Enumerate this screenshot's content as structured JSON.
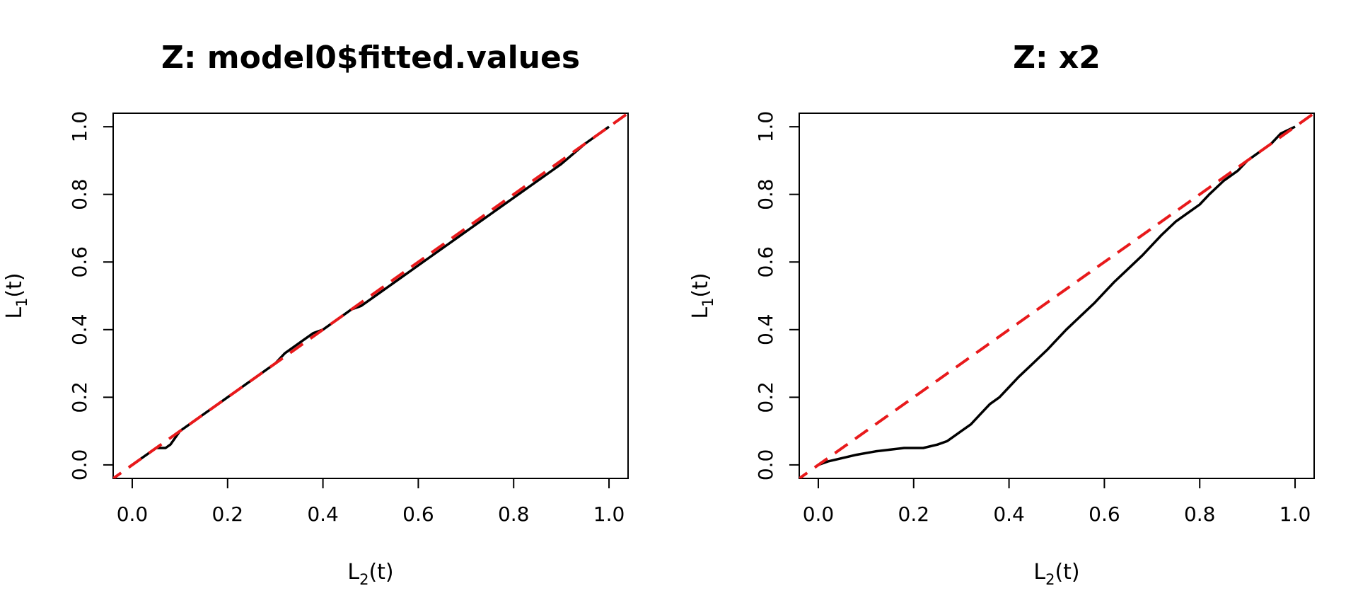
{
  "colors": {
    "curve": "#000000",
    "diagonal": "#e8191b",
    "background": "#ffffff"
  },
  "chart_data": [
    {
      "type": "line",
      "title": "Z: model0$fitted.values",
      "xlabel": {
        "main": "L",
        "sub": "2",
        "tail": "(t)"
      },
      "ylabel": {
        "main": "L",
        "sub": "1",
        "tail": "(t)"
      },
      "xlim": [
        0,
        1
      ],
      "ylim": [
        0,
        1
      ],
      "xticks": [
        "0.0",
        "0.2",
        "0.4",
        "0.6",
        "0.8",
        "1.0"
      ],
      "yticks": [
        "0.0",
        "0.2",
        "0.4",
        "0.6",
        "0.8",
        "1.0"
      ],
      "grid": false,
      "series": [
        {
          "style": "solid-black",
          "x": [
            0,
            0.02,
            0.03,
            0.04,
            0.05,
            0.06,
            0.07,
            0.08,
            0.09,
            0.1,
            0.12,
            0.14,
            0.16,
            0.18,
            0.2,
            0.22,
            0.24,
            0.26,
            0.28,
            0.3,
            0.32,
            0.34,
            0.36,
            0.38,
            0.4,
            0.42,
            0.44,
            0.46,
            0.48,
            0.5,
            0.55,
            0.6,
            0.65,
            0.7,
            0.75,
            0.8,
            0.85,
            0.9,
            0.95,
            1.0
          ],
          "y": [
            0,
            0.02,
            0.03,
            0.04,
            0.05,
            0.05,
            0.05,
            0.06,
            0.08,
            0.1,
            0.12,
            0.14,
            0.16,
            0.18,
            0.2,
            0.22,
            0.24,
            0.26,
            0.28,
            0.3,
            0.33,
            0.35,
            0.37,
            0.39,
            0.4,
            0.42,
            0.44,
            0.46,
            0.47,
            0.49,
            0.54,
            0.59,
            0.64,
            0.69,
            0.74,
            0.79,
            0.84,
            0.89,
            0.95,
            1.0
          ]
        },
        {
          "style": "dashed-red",
          "x": [
            -0.05,
            1.05
          ],
          "y": [
            -0.05,
            1.05
          ]
        }
      ]
    },
    {
      "type": "line",
      "title": "Z: x2",
      "xlabel": {
        "main": "L",
        "sub": "2",
        "tail": "(t)"
      },
      "ylabel": {
        "main": "L",
        "sub": "1",
        "tail": "(t)"
      },
      "xlim": [
        0,
        1
      ],
      "ylim": [
        0,
        1
      ],
      "xticks": [
        "0.0",
        "0.2",
        "0.4",
        "0.6",
        "0.8",
        "1.0"
      ],
      "yticks": [
        "0.0",
        "0.2",
        "0.4",
        "0.6",
        "0.8",
        "1.0"
      ],
      "grid": false,
      "series": [
        {
          "style": "solid-black",
          "x": [
            0,
            0.02,
            0.05,
            0.08,
            0.1,
            0.12,
            0.15,
            0.18,
            0.2,
            0.22,
            0.25,
            0.27,
            0.28,
            0.3,
            0.32,
            0.34,
            0.36,
            0.38,
            0.4,
            0.42,
            0.45,
            0.48,
            0.5,
            0.52,
            0.55,
            0.58,
            0.6,
            0.62,
            0.65,
            0.68,
            0.7,
            0.72,
            0.75,
            0.78,
            0.8,
            0.82,
            0.85,
            0.88,
            0.9,
            0.92,
            0.95,
            0.97,
            1.0
          ],
          "y": [
            0,
            0.01,
            0.02,
            0.03,
            0.035,
            0.04,
            0.045,
            0.05,
            0.05,
            0.05,
            0.06,
            0.07,
            0.08,
            0.1,
            0.12,
            0.15,
            0.18,
            0.2,
            0.23,
            0.26,
            0.3,
            0.34,
            0.37,
            0.4,
            0.44,
            0.48,
            0.51,
            0.54,
            0.58,
            0.62,
            0.65,
            0.68,
            0.72,
            0.75,
            0.77,
            0.8,
            0.84,
            0.87,
            0.9,
            0.92,
            0.95,
            0.98,
            1.0
          ]
        },
        {
          "style": "dashed-red",
          "x": [
            -0.05,
            1.05
          ],
          "y": [
            -0.05,
            1.05
          ]
        }
      ]
    }
  ]
}
